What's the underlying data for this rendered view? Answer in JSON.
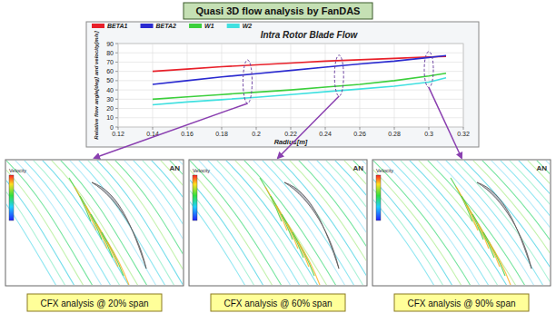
{
  "chart_data": {
    "type": "line",
    "title": "Intra Rotor Blade Flow",
    "x_label": "Radius[m]",
    "y_label": "Relative flow angle[deg] and velocity[m/s]",
    "x": [
      0.14,
      0.16,
      0.18,
      0.2,
      0.22,
      0.24,
      0.26,
      0.28,
      0.3,
      0.31
    ],
    "series": [
      {
        "name": "BETA1",
        "color": "#e8202a",
        "values": [
          60,
          62.5,
          65,
          67,
          69,
          71,
          72.5,
          74,
          75.5,
          76
        ]
      },
      {
        "name": "BETA2",
        "color": "#2a2ad0",
        "values": [
          46,
          50,
          54,
          57.5,
          61,
          64.5,
          68,
          71,
          75,
          77
        ]
      },
      {
        "name": "W1",
        "color": "#3ccf3c",
        "values": [
          30,
          32.5,
          35,
          37.5,
          40,
          43,
          46,
          50,
          55,
          58
        ]
      },
      {
        "name": "W2",
        "color": "#40e0e0",
        "values": [
          24,
          27,
          29.5,
          32,
          35,
          38,
          41,
          44,
          48.5,
          53
        ]
      }
    ],
    "xlim": [
      0.12,
      0.32
    ],
    "xticks": [
      0.12,
      0.14,
      0.16,
      0.18,
      0.2,
      0.22,
      0.24,
      0.26,
      0.28,
      0.3,
      0.32
    ],
    "ylim": [
      0,
      90
    ],
    "yticks": [
      0,
      10,
      20,
      30,
      40,
      50,
      60,
      70,
      80,
      90
    ],
    "grid": true,
    "legend": "top-left",
    "highlights": [
      0.195,
      0.248,
      0.3
    ]
  },
  "header": {
    "title": "Quasi 3D flow analysis by FanDAS"
  },
  "panels": [
    {
      "caption": "CFX analysis @ 20% span",
      "colorbar_label": "Velocity",
      "logo": "AN"
    },
    {
      "caption": "CFX analysis @ 60% span",
      "colorbar_label": "Velocity",
      "logo": "AN"
    },
    {
      "caption": "CFX analysis @ 90% span",
      "colorbar_label": "Velocity",
      "logo": "AN"
    }
  ]
}
